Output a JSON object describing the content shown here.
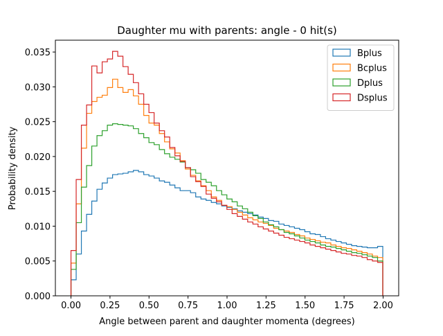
{
  "chart_data": {
    "type": "step-histogram",
    "title": "Daughter mu with parents: angle - 0 hit(s)",
    "xlabel": "Angle between parent and daughter momenta (degrees)",
    "ylabel": "Probability density",
    "xlim": [
      -0.1,
      2.1
    ],
    "ylim": [
      0.0,
      0.0367
    ],
    "xticks": [
      "0.00",
      "0.25",
      "0.50",
      "0.75",
      "1.00",
      "1.25",
      "1.50",
      "1.75",
      "2.00"
    ],
    "yticks": [
      "0.000",
      "0.005",
      "0.010",
      "0.015",
      "0.020",
      "0.025",
      "0.030",
      "0.035"
    ],
    "legend_position": "top-right",
    "bin_edges_start": 0.0,
    "bin_width": 0.0333,
    "series": [
      {
        "name": "Bplus",
        "color": "#1f77b4",
        "values": [
          0.0023,
          0.006,
          0.0093,
          0.0117,
          0.0136,
          0.0153,
          0.0162,
          0.0169,
          0.0174,
          0.0175,
          0.0176,
          0.0178,
          0.018,
          0.0178,
          0.0174,
          0.0172,
          0.0169,
          0.0165,
          0.0163,
          0.0159,
          0.0155,
          0.0151,
          0.0151,
          0.0148,
          0.0142,
          0.0139,
          0.0137,
          0.0134,
          0.0132,
          0.0129,
          0.0127,
          0.0125,
          0.0122,
          0.012,
          0.0118,
          0.0116,
          0.0113,
          0.0111,
          0.0108,
          0.0107,
          0.0103,
          0.0101,
          0.0099,
          0.0097,
          0.0095,
          0.0092,
          0.0089,
          0.0088,
          0.0085,
          0.0082,
          0.008,
          0.0078,
          0.0076,
          0.0074,
          0.0072,
          0.0071,
          0.007,
          0.0069,
          0.0069,
          0.0071
        ]
      },
      {
        "name": "Bcplus",
        "color": "#ff7f0e",
        "values": [
          0.0047,
          0.0132,
          0.0212,
          0.0262,
          0.0279,
          0.0285,
          0.0288,
          0.0299,
          0.0311,
          0.0299,
          0.0292,
          0.0296,
          0.0287,
          0.0275,
          0.0259,
          0.0248,
          0.0245,
          0.0233,
          0.0221,
          0.0211,
          0.0205,
          0.0194,
          0.0182,
          0.0173,
          0.0165,
          0.0158,
          0.0151,
          0.0142,
          0.0137,
          0.013,
          0.0128,
          0.0124,
          0.012,
          0.0116,
          0.0112,
          0.0109,
          0.0106,
          0.0104,
          0.0101,
          0.0097,
          0.0095,
          0.0093,
          0.0091,
          0.0088,
          0.0086,
          0.0083,
          0.0081,
          0.0079,
          0.0077,
          0.0076,
          0.0073,
          0.0071,
          0.0069,
          0.0068,
          0.0066,
          0.0064,
          0.0062,
          0.006,
          0.0057,
          0.0055
        ]
      },
      {
        "name": "Dplus",
        "color": "#2ca02c",
        "values": [
          0.0038,
          0.0105,
          0.0156,
          0.0187,
          0.0215,
          0.023,
          0.0237,
          0.0245,
          0.0247,
          0.0246,
          0.0245,
          0.0244,
          0.024,
          0.0233,
          0.0227,
          0.022,
          0.0217,
          0.021,
          0.0204,
          0.0199,
          0.0196,
          0.0192,
          0.0184,
          0.0181,
          0.0176,
          0.0167,
          0.0163,
          0.0158,
          0.0151,
          0.0145,
          0.0139,
          0.0135,
          0.0129,
          0.0125,
          0.012,
          0.0115,
          0.0111,
          0.0106,
          0.0102,
          0.0099,
          0.0095,
          0.0091,
          0.0089,
          0.0086,
          0.0083,
          0.008,
          0.0078,
          0.0076,
          0.0073,
          0.0071,
          0.007,
          0.0068,
          0.0066,
          0.0064,
          0.0062,
          0.0061,
          0.0059,
          0.0057,
          0.0055,
          0.005
        ]
      },
      {
        "name": "Dsplus",
        "color": "#d62728",
        "values": [
          0.0065,
          0.0167,
          0.0245,
          0.0274,
          0.033,
          0.032,
          0.0336,
          0.034,
          0.0351,
          0.0344,
          0.0329,
          0.0318,
          0.0306,
          0.029,
          0.0275,
          0.0263,
          0.0248,
          0.0237,
          0.0228,
          0.0213,
          0.0201,
          0.0193,
          0.0184,
          0.0171,
          0.0164,
          0.0157,
          0.0146,
          0.014,
          0.0135,
          0.013,
          0.0124,
          0.0118,
          0.0114,
          0.011,
          0.0106,
          0.0103,
          0.0099,
          0.0096,
          0.0093,
          0.009,
          0.0087,
          0.0084,
          0.0082,
          0.008,
          0.0078,
          0.0076,
          0.0073,
          0.0071,
          0.0069,
          0.0067,
          0.0065,
          0.0063,
          0.0061,
          0.006,
          0.0058,
          0.0057,
          0.0055,
          0.0052,
          0.005,
          0.0048
        ]
      }
    ]
  }
}
